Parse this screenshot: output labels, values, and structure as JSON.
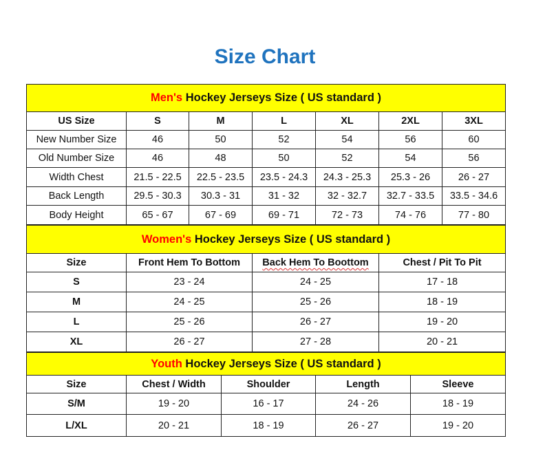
{
  "title": "Size Chart",
  "colors": {
    "title": "#1F73BE",
    "header_bg": "#FFFF00",
    "accent": "#FF0000"
  },
  "sections": [
    {
      "accent": "Men's",
      "heading": " Hockey Jerseys Size ( US standard )",
      "columns": [
        "US Size",
        "S",
        "M",
        "L",
        "XL",
        "2XL",
        "3XL"
      ],
      "rows": [
        [
          "New Number Size",
          "46",
          "50",
          "52",
          "54",
          "56",
          "60"
        ],
        [
          "Old Number Size",
          "46",
          "48",
          "50",
          "52",
          "54",
          "56"
        ],
        [
          "Width Chest",
          "21.5 - 22.5",
          "22.5 - 23.5",
          "23.5 - 24.3",
          "24.3 - 25.3",
          "25.3 - 26",
          "26 - 27"
        ],
        [
          "Back Length",
          "29.5 - 30.3",
          "30.3 - 31",
          "31 - 32",
          "32 - 32.7",
          "32.7 - 33.5",
          "33.5 - 34.6"
        ],
        [
          "Body Height",
          "65 - 67",
          "67 - 69",
          "69 - 71",
          "72 - 73",
          "74 - 76",
          "77 - 80"
        ]
      ]
    },
    {
      "accent": "Women's",
      "heading": " Hockey Jerseys Size ( US standard )",
      "columns": [
        "Size",
        "Front Hem To Bottom",
        "Back Hem To Boottom",
        "Chest / Pit To Pit"
      ],
      "rows": [
        [
          "S",
          "23 - 24",
          "24 - 25",
          "17 - 18"
        ],
        [
          "M",
          "24 - 25",
          "25 - 26",
          "18 - 19"
        ],
        [
          "L",
          "25 - 26",
          "26 - 27",
          "19 - 20"
        ],
        [
          "XL",
          "26 - 27",
          "27 - 28",
          "20 - 21"
        ]
      ]
    },
    {
      "accent": "Youth",
      "heading": " Hockey Jerseys Size ( US standard )",
      "columns": [
        "Size",
        "Chest / Width",
        "Shoulder",
        "Length",
        "Sleeve"
      ],
      "rows": [
        [
          "S/M",
          "19 - 20",
          "16 - 17",
          "24 - 26",
          "18 - 19"
        ],
        [
          "L/XL",
          "20 - 21",
          "18 - 19",
          "26 - 27",
          "19 - 20"
        ]
      ]
    }
  ]
}
